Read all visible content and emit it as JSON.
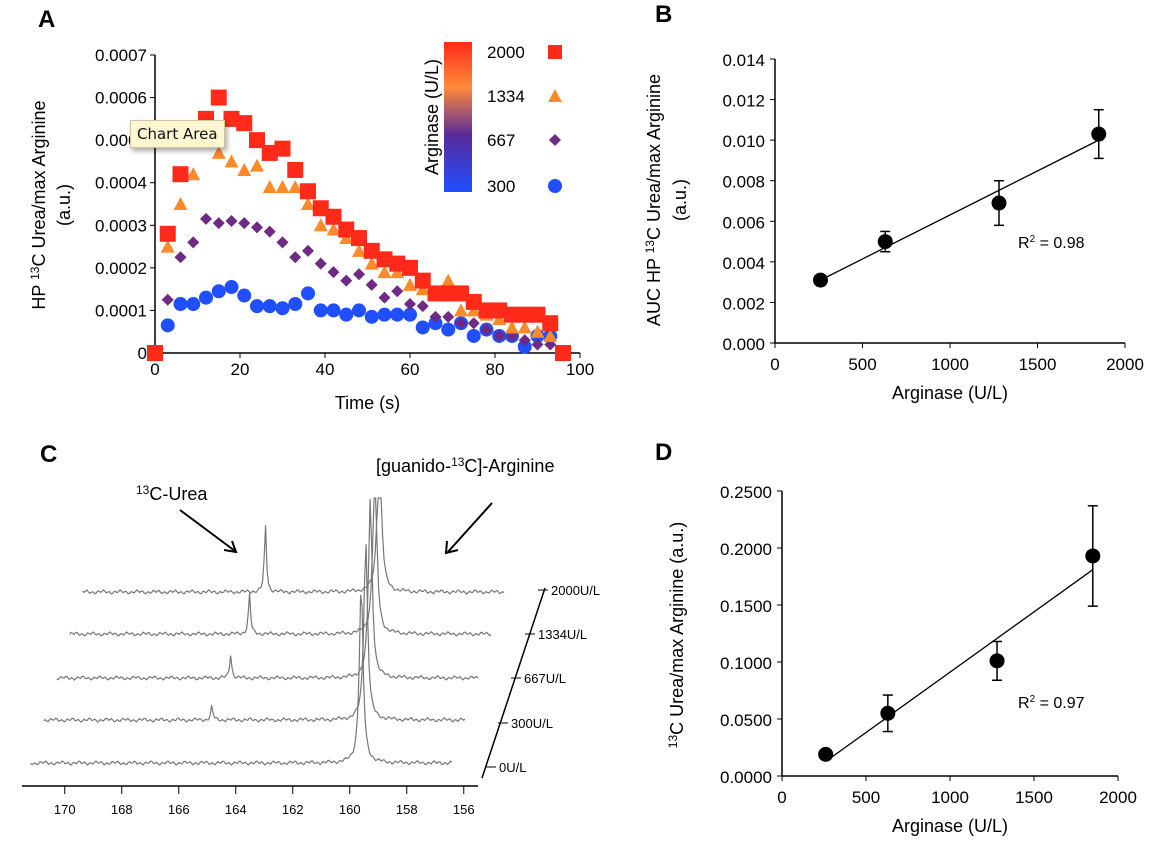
{
  "tooltip": "Chart Area",
  "chart_data": [
    {
      "panel": "A",
      "type": "scatter",
      "xlabel": "Time (s)",
      "ylabel": "HP 13C Urea/max Arginine (a.u.)",
      "xlim": [
        0,
        100
      ],
      "ylim": [
        0,
        0.0007
      ],
      "xticks": [
        "0",
        "20",
        "40",
        "60",
        "80",
        "100"
      ],
      "yticks": [
        "0",
        "0.0001",
        "0.0002",
        "0.0003",
        "0.0004",
        "0.0005",
        "0.0006",
        "0.0007"
      ],
      "legend": {
        "title": "Arginase (U/L)",
        "placement": "top-right",
        "colorbar": [
          "#1f4fff",
          "#5a2a9a",
          "#ff8a3a",
          "#ff2a1a"
        ]
      },
      "series": [
        {
          "name": "2000",
          "marker": "square",
          "color": "#ff2a1a",
          "x": [
            0,
            3,
            6,
            12,
            15,
            18,
            21,
            24,
            27,
            30,
            33,
            36,
            39,
            42,
            45,
            48,
            51,
            54,
            57,
            60,
            63,
            66,
            69,
            72,
            75,
            78,
            81,
            84,
            87,
            90,
            93,
            96
          ],
          "y": [
            0,
            0.00028,
            0.00042,
            0.00055,
            0.0006,
            0.00055,
            0.00054,
            0.0005,
            0.00047,
            0.00048,
            0.00043,
            0.00038,
            0.00034,
            0.00032,
            0.00029,
            0.00027,
            0.00024,
            0.00022,
            0.00021,
            0.0002,
            0.00017,
            0.00014,
            0.00014,
            0.00014,
            0.00012,
            0.0001,
            0.0001,
            9e-05,
            9e-05,
            9e-05,
            7e-05,
            0
          ]
        },
        {
          "name": "1334",
          "marker": "triangle",
          "color": "#ff8a2a",
          "x": [
            3,
            6,
            9,
            12,
            15,
            18,
            21,
            24,
            27,
            30,
            33,
            36,
            39,
            42,
            45,
            48,
            51,
            54,
            57,
            60,
            63,
            66,
            69,
            72,
            75,
            78,
            81,
            84,
            87,
            90,
            93
          ],
          "y": [
            0.00025,
            0.00035,
            0.00042,
            0.0005,
            0.00047,
            0.00045,
            0.00043,
            0.00044,
            0.00039,
            0.00039,
            0.00039,
            0.00035,
            0.0003,
            0.00029,
            0.00027,
            0.00024,
            0.00021,
            0.00019,
            0.00019,
            0.00016,
            0.00015,
            0.00014,
            0.00017,
            0.0001,
            0.0001,
            9e-05,
            8e-05,
            6e-05,
            6e-05,
            5e-05,
            4e-05
          ]
        },
        {
          "name": "667",
          "marker": "diamond",
          "color": "#6e2a85",
          "x": [
            3,
            6,
            9,
            12,
            15,
            18,
            21,
            24,
            27,
            30,
            33,
            36,
            39,
            42,
            45,
            48,
            51,
            54,
            57,
            60,
            63,
            66,
            69,
            72,
            75,
            78,
            81,
            84,
            87,
            90,
            93
          ],
          "y": [
            0.000125,
            0.000225,
            0.00026,
            0.000315,
            0.000305,
            0.00031,
            0.000305,
            0.000295,
            0.000285,
            0.00026,
            0.000225,
            0.00024,
            0.00021,
            0.00019,
            0.00017,
            0.000185,
            0.00016,
            0.00013,
            0.000145,
            0.000115,
            0.00011,
            8.5e-05,
            8.5e-05,
            7e-05,
            7e-05,
            5.5e-05,
            4e-05,
            4e-05,
            3e-05,
            2e-05,
            2e-05
          ]
        },
        {
          "name": "300",
          "marker": "circle",
          "color": "#1f4fff",
          "x": [
            3,
            6,
            9,
            12,
            15,
            18,
            21,
            24,
            27,
            30,
            33,
            36,
            39,
            42,
            45,
            48,
            51,
            54,
            57,
            60,
            63,
            66,
            69,
            72,
            75,
            78,
            81,
            84,
            87,
            90,
            93
          ],
          "y": [
            6.5e-05,
            0.000115,
            0.000115,
            0.00013,
            0.000145,
            0.000155,
            0.000135,
            0.00011,
            0.00011,
            0.000105,
            0.000115,
            0.00014,
            0.0001,
            0.0001,
            9e-05,
            0.0001,
            8.5e-05,
            9e-05,
            9e-05,
            9e-05,
            6e-05,
            7e-05,
            5.5e-05,
            7e-05,
            4e-05,
            5.5e-05,
            4e-05,
            4e-05,
            1.5e-05,
            4e-05,
            4e-05
          ]
        }
      ]
    },
    {
      "panel": "B",
      "type": "scatter",
      "xlabel": "Arginase (U/L)",
      "ylabel": "AUC HP 13C Urea/max Arginine (a.u.)",
      "xlim": [
        0,
        2000
      ],
      "ylim": [
        0,
        0.014
      ],
      "xticks": [
        "0",
        "500",
        "1000",
        "1500",
        "2000"
      ],
      "yticks": [
        "0.000",
        "0.002",
        "0.004",
        "0.006",
        "0.008",
        "0.010",
        "0.012",
        "0.014"
      ],
      "x": [
        260,
        630,
        1280,
        1850
      ],
      "y": [
        0.0031,
        0.005,
        0.0069,
        0.0103
      ],
      "err": [
        0.0002,
        0.0005,
        0.0011,
        0.0012
      ],
      "fit": {
        "x": [
          260,
          1850
        ],
        "y": [
          0.0031,
          0.01
        ]
      },
      "annotation": "R² = 0.98"
    },
    {
      "panel": "C",
      "type": "line",
      "xlabel": "",
      "xlim": [
        171.5,
        155.5
      ],
      "xticks": [
        "170",
        "168",
        "166",
        "164",
        "162",
        "160",
        "158",
        "156"
      ],
      "labels": {
        "urea": "¹³C-Urea",
        "arginine": "[guanido-¹³C]-Arginine"
      },
      "traces": [
        {
          "name": "0U/L",
          "urea_ppm": null,
          "urea_height": 0
        },
        {
          "name": "300U/L",
          "urea_ppm": 165.0,
          "urea_height": 0.2
        },
        {
          "name": "667U/L",
          "urea_ppm": 164.5,
          "urea_height": 0.35
        },
        {
          "name": "1334U/L",
          "urea_ppm": 164.0,
          "urea_height": 0.6
        },
        {
          "name": "2000U/L",
          "urea_ppm": 163.6,
          "urea_height": 1.0
        }
      ],
      "arginine_ppm": 159.6
    },
    {
      "panel": "D",
      "type": "scatter",
      "xlabel": "Arginase (U/L)",
      "ylabel": "13C Urea/max Arginine (a.u.)",
      "xlim": [
        0,
        2000
      ],
      "ylim": [
        0,
        0.25
      ],
      "xticks": [
        "0",
        "500",
        "1000",
        "1500",
        "2000"
      ],
      "yticks": [
        "0.0000",
        "0.0500",
        "0.1000",
        "0.1500",
        "0.2000",
        "0.2500"
      ],
      "x": [
        260,
        630,
        1280,
        1850
      ],
      "y": [
        0.019,
        0.055,
        0.101,
        0.193
      ],
      "err": [
        0.004,
        0.016,
        0.017,
        0.044
      ],
      "fit": {
        "x": [
          300,
          1850
        ],
        "y": [
          0.017,
          0.181
        ]
      },
      "annotation": "R² = 0.97"
    }
  ]
}
